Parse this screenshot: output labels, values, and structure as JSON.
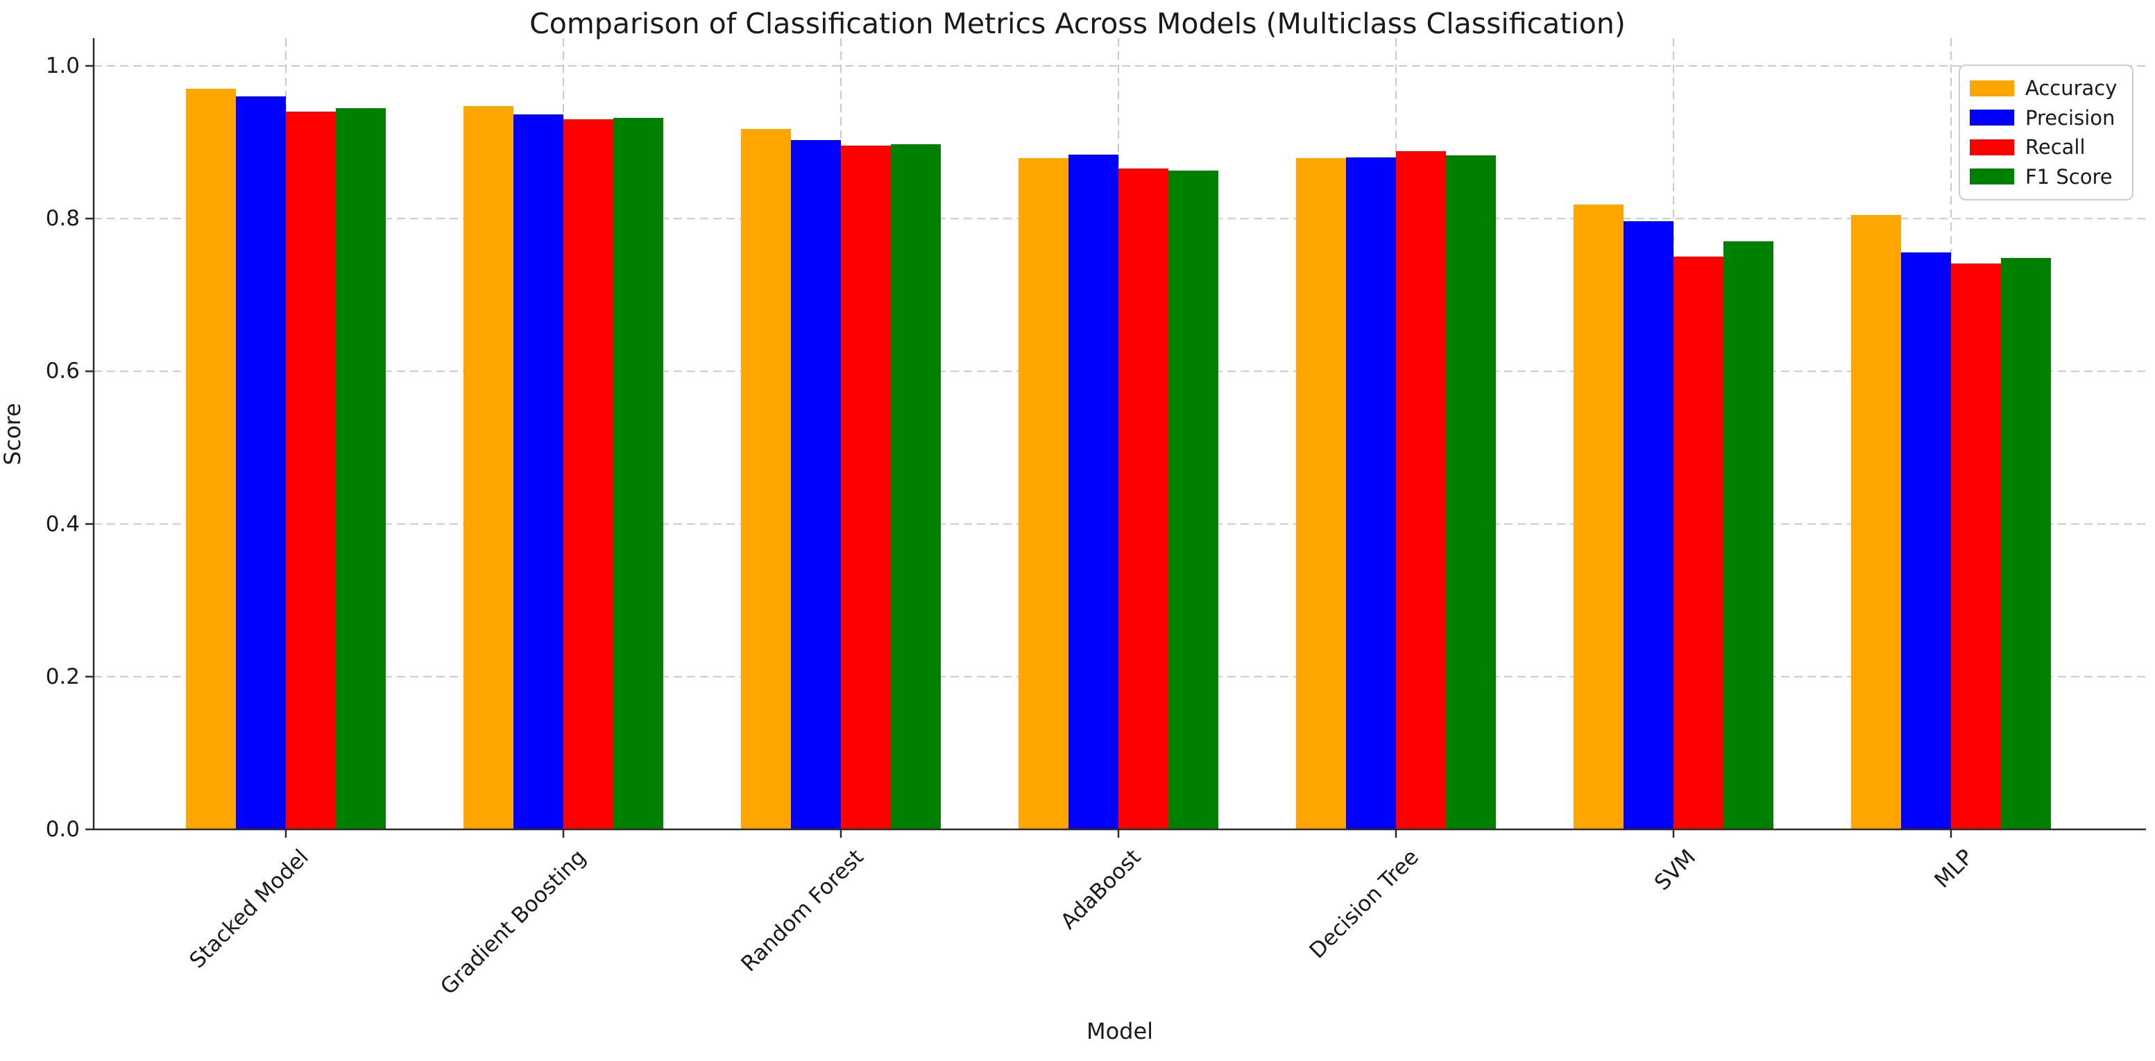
{
  "chart_data": {
    "type": "bar",
    "title": "Comparison of Classification Metrics Across Models (Multiclass Classification)",
    "xlabel": "Model",
    "ylabel": "Score",
    "categories": [
      "Stacked Model",
      "Gradient Boosting",
      "Random Forest",
      "AdaBoost",
      "Decision Tree",
      "SVM",
      "MLP"
    ],
    "series": [
      {
        "name": "Accuracy",
        "color": "#FFA500",
        "values": [
          0.97,
          0.947,
          0.917,
          0.879,
          0.879,
          0.818,
          0.805
        ]
      },
      {
        "name": "Precision",
        "color": "#0000FF",
        "values": [
          0.96,
          0.936,
          0.903,
          0.884,
          0.88,
          0.797,
          0.756
        ]
      },
      {
        "name": "Recall",
        "color": "#FF0000",
        "values": [
          0.94,
          0.93,
          0.896,
          0.866,
          0.888,
          0.75,
          0.741
        ]
      },
      {
        "name": "F1 Score",
        "color": "#008000",
        "values": [
          0.945,
          0.932,
          0.897,
          0.863,
          0.883,
          0.77,
          0.748
        ]
      }
    ],
    "ylim": [
      0.0,
      1.04
    ],
    "yticks": [
      "0.0",
      "0.2",
      "0.4",
      "0.6",
      "0.8",
      "1.0"
    ],
    "xtick_rotation_deg": 45,
    "grid": {
      "style": "dashed",
      "color": "#c9c9c9",
      "axes": "both"
    },
    "legend_position": "upper right",
    "colors": {
      "accuracy": "#FFA500",
      "precision": "#0000FF",
      "recall": "#FF0000",
      "f1": "#008000",
      "spine": "#2b2b2b"
    }
  }
}
